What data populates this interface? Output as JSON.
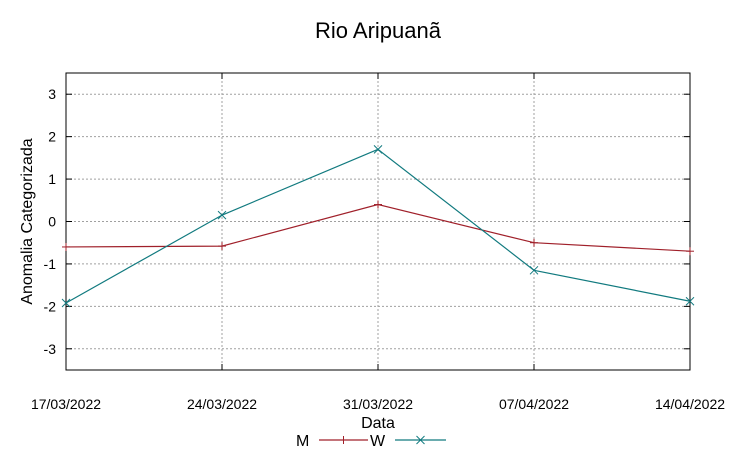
{
  "chart_data": {
    "type": "line",
    "title": "Rio Aripuanã",
    "xlabel": "Data",
    "ylabel": "Anomalia Categorizada",
    "x": [
      "17/03/2022",
      "24/03/2022",
      "31/03/2022",
      "07/04/2022",
      "14/04/2022"
    ],
    "ylim": [
      -3.5,
      3.5
    ],
    "yticks": [
      -3,
      -2,
      -1,
      0,
      1,
      2,
      3
    ],
    "grid": true,
    "legend": "bottom",
    "series": [
      {
        "name": "M",
        "values": [
          -0.6,
          -0.58,
          0.4,
          -0.5,
          -0.7
        ],
        "color": "#a0202a",
        "marker": "plus"
      },
      {
        "name": "W",
        "values": [
          -1.92,
          0.15,
          1.7,
          -1.15,
          -1.88
        ],
        "color": "#117a7f",
        "marker": "cross"
      }
    ]
  }
}
